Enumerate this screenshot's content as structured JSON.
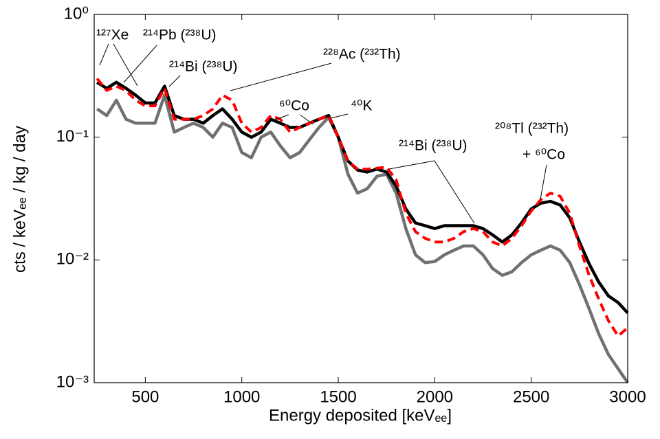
{
  "chart_data": {
    "type": "line",
    "xlabel": "Energy deposited [keVₑₑ]",
    "ylabel": "cts / keVₑₑ / kg / day",
    "x": [
      250,
      300,
      350,
      400,
      450,
      500,
      550,
      600,
      650,
      700,
      750,
      800,
      850,
      900,
      950,
      1000,
      1050,
      1100,
      1150,
      1200,
      1250,
      1300,
      1350,
      1400,
      1450,
      1500,
      1550,
      1600,
      1650,
      1700,
      1750,
      1800,
      1850,
      1900,
      1950,
      2000,
      2050,
      2100,
      2150,
      2200,
      2250,
      2300,
      2350,
      2400,
      2450,
      2500,
      2550,
      2600,
      2650,
      2700,
      2750,
      2800,
      2850,
      2900,
      2950,
      3000
    ],
    "series": [
      {
        "color": "#707070",
        "values": [
          0.17,
          0.15,
          0.2,
          0.14,
          0.13,
          0.13,
          0.13,
          0.22,
          0.11,
          0.12,
          0.13,
          0.12,
          0.1,
          0.13,
          0.12,
          0.075,
          0.068,
          0.1,
          0.11,
          0.085,
          0.068,
          0.075,
          0.095,
          0.12,
          0.145,
          0.1,
          0.05,
          0.035,
          0.038,
          0.048,
          0.05,
          0.035,
          0.018,
          0.011,
          0.0095,
          0.0097,
          0.011,
          0.012,
          0.013,
          0.013,
          0.011,
          0.0085,
          0.0075,
          0.008,
          0.0095,
          0.011,
          0.012,
          0.013,
          0.012,
          0.0095,
          0.0063,
          0.004,
          0.0025,
          0.0017,
          0.0013,
          0.001
        ]
      },
      {
        "color": "#000000",
        "values": [
          0.28,
          0.25,
          0.28,
          0.25,
          0.22,
          0.19,
          0.19,
          0.26,
          0.15,
          0.14,
          0.14,
          0.13,
          0.15,
          0.17,
          0.14,
          0.11,
          0.1,
          0.11,
          0.14,
          0.13,
          0.12,
          0.12,
          0.13,
          0.14,
          0.15,
          0.1,
          0.064,
          0.054,
          0.052,
          0.055,
          0.052,
          0.04,
          0.026,
          0.02,
          0.019,
          0.018,
          0.019,
          0.019,
          0.019,
          0.019,
          0.018,
          0.016,
          0.014,
          0.016,
          0.02,
          0.026,
          0.029,
          0.03,
          0.028,
          0.022,
          0.014,
          0.0093,
          0.0066,
          0.0051,
          0.0045,
          0.0037
        ]
      },
      {
        "color": "#ff0000",
        "dashed": true,
        "values": [
          0.3,
          0.24,
          0.26,
          0.24,
          0.2,
          0.18,
          0.18,
          0.25,
          0.14,
          0.14,
          0.14,
          0.15,
          0.17,
          0.22,
          0.2,
          0.13,
          0.11,
          0.12,
          0.15,
          0.14,
          0.11,
          0.12,
          0.13,
          0.14,
          0.15,
          0.1,
          0.064,
          0.055,
          0.055,
          0.056,
          0.057,
          0.045,
          0.024,
          0.017,
          0.015,
          0.014,
          0.014,
          0.015,
          0.017,
          0.018,
          0.017,
          0.014,
          0.013,
          0.015,
          0.019,
          0.025,
          0.031,
          0.035,
          0.033,
          0.024,
          0.013,
          0.0075,
          0.0048,
          0.0032,
          0.0024,
          0.0028
        ]
      }
    ],
    "xlim": [
      235,
      3000
    ],
    "xticks": [
      500,
      1000,
      1500,
      2000,
      2500,
      3000
    ],
    "ylim": [
      0.001,
      1
    ],
    "log_y": true,
    "yticks": [
      {
        "value": 1,
        "label": "10⁰"
      },
      {
        "value": 0.1,
        "label": "10⁻¹"
      },
      {
        "value": 0.01,
        "label": "10⁻²"
      },
      {
        "value": 0.001,
        "label": "10⁻³"
      }
    ],
    "annotations": [
      "¹²⁷Xe",
      "²¹⁴Pb (²³⁸U)",
      "²¹⁴Bi (²³⁸U)",
      "²²⁸Ac (²³²Th)",
      "⁶⁰Co",
      "⁴⁰K",
      "²¹⁴Bi (²³⁸U)",
      "²⁰⁸Tl (²³²Th)",
      "+ ⁶⁰Co"
    ]
  }
}
